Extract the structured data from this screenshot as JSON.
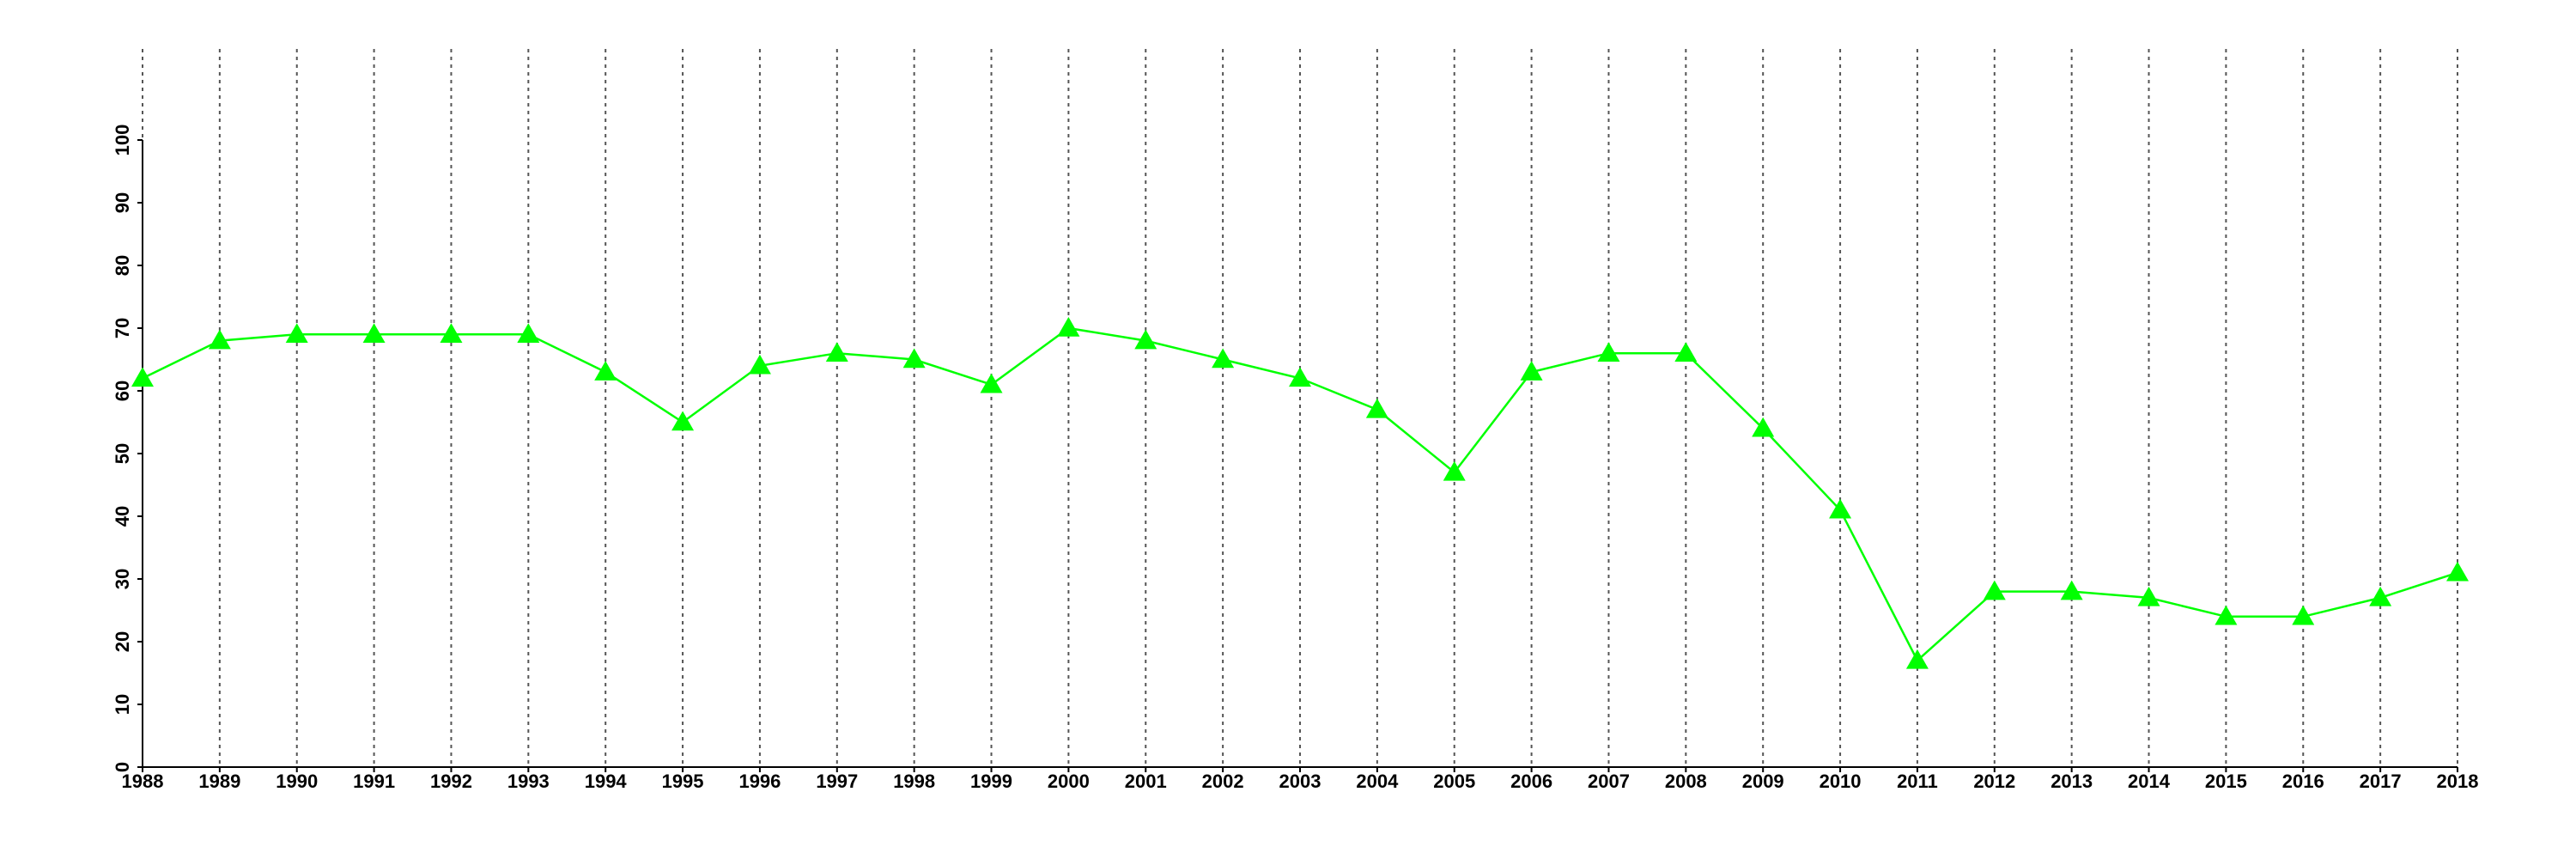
{
  "chart_data": {
    "type": "line",
    "x": [
      1988,
      1989,
      1990,
      1991,
      1992,
      1993,
      1994,
      1995,
      1996,
      1997,
      1998,
      1999,
      2000,
      2001,
      2002,
      2003,
      2004,
      2005,
      2006,
      2007,
      2008,
      2009,
      2010,
      2011,
      2012,
      2013,
      2014,
      2015,
      2016,
      2017,
      2018
    ],
    "values": [
      62,
      68,
      69,
      69,
      69,
      69,
      63,
      55,
      64,
      66,
      65,
      61,
      70,
      68,
      65,
      62,
      57,
      47,
      63,
      66,
      66,
      54,
      41,
      17,
      28,
      28,
      27,
      24,
      24,
      27,
      31
    ],
    "color": "#00ff00",
    "marker": "triangle",
    "xlim": [
      1988,
      2018
    ],
    "xticks": [
      1988,
      1989,
      1990,
      1991,
      1992,
      1993,
      1994,
      1995,
      1996,
      1997,
      1998,
      1999,
      2000,
      2001,
      2002,
      2003,
      2004,
      2005,
      2006,
      2007,
      2008,
      2009,
      2010,
      2011,
      2012,
      2013,
      2014,
      2015,
      2016,
      2017,
      2018
    ],
    "ylim": [
      0,
      100
    ],
    "yticks": [
      0,
      10,
      20,
      30,
      40,
      50,
      60,
      70,
      80,
      90,
      100
    ],
    "grid": "x"
  }
}
